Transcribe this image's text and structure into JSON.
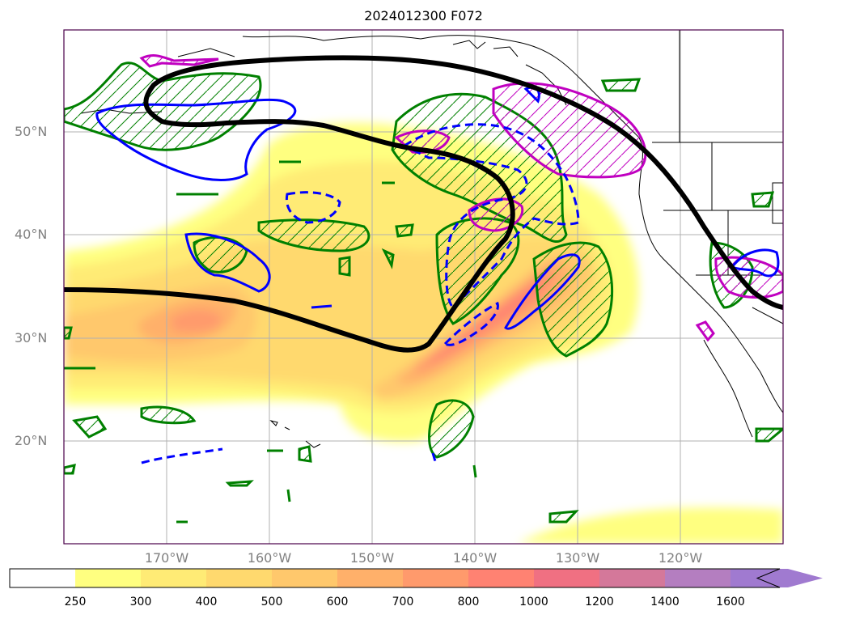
{
  "title": "2024012300 F072",
  "lat_labels": [
    "50°N",
    "40°N",
    "30°N",
    "20°N"
  ],
  "lon_labels": [
    "170°W",
    "160°W",
    "150°W",
    "140°W",
    "130°W",
    "120°W"
  ],
  "colorbar": {
    "levels": [
      "250",
      "300",
      "400",
      "500",
      "600",
      "700",
      "800",
      "1000",
      "1200",
      "1400",
      "1600"
    ],
    "colors": [
      "#ffffff",
      "#ffff80",
      "#ffeb75",
      "#ffd96e",
      "#ffc86c",
      "#ffb06a",
      "#ff9a6c",
      "#ff8272",
      "#f07082",
      "#d4789a",
      "#b47ec0",
      "#a07ad0"
    ],
    "extend": "max"
  },
  "map_style": {
    "jet_contour_color": "#000000",
    "green_hatch_color": "#008000",
    "blue_contour_color": "#0000ff",
    "magenta_contour_color": "#c000c0",
    "grid_color": "#b0b0b0",
    "coastline_color": "#000000"
  }
}
